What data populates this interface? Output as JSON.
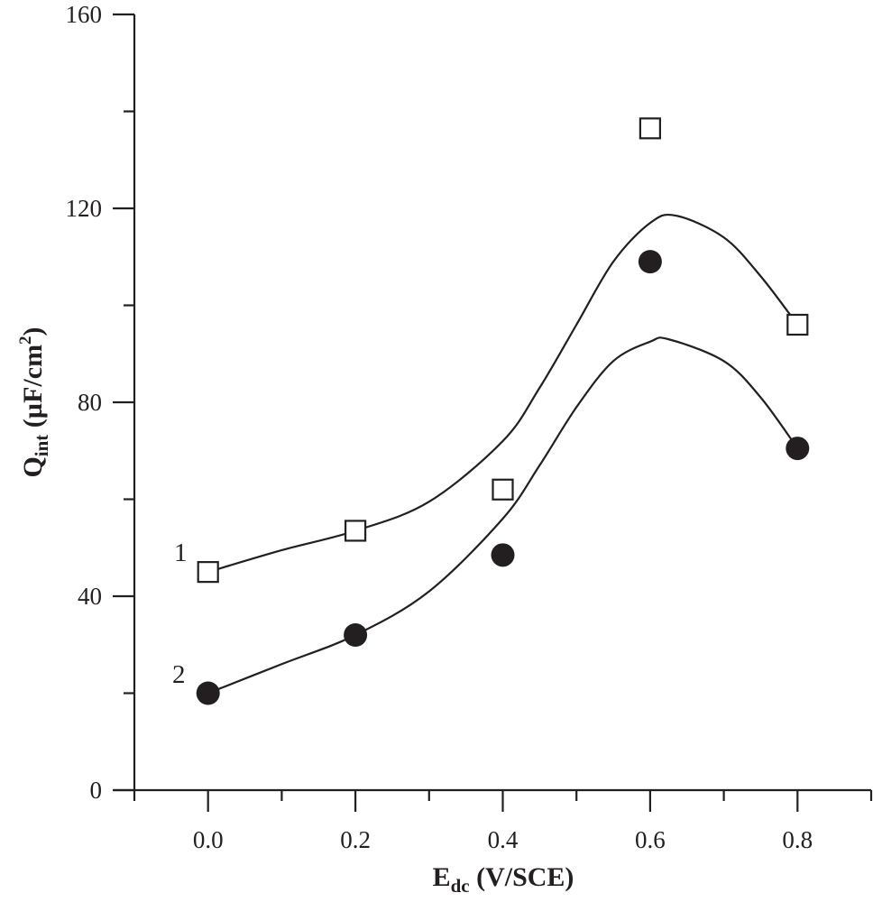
{
  "chart_data": {
    "type": "scatter",
    "title": "",
    "xlabel": {
      "main": "E",
      "sub": "dc",
      "rest": " (V/SCE)"
    },
    "ylabel": {
      "main": "Q",
      "sub": "int",
      "rest1": " (µF/cm",
      "sup": "2",
      "rest2": ")"
    },
    "xlim": [
      -0.1,
      0.9
    ],
    "ylim": [
      0,
      160
    ],
    "x_ticks": [
      {
        "value": 0.0,
        "label": "0.0"
      },
      {
        "value": 0.2,
        "label": "0.2"
      },
      {
        "value": 0.4,
        "label": "0.4"
      },
      {
        "value": 0.6,
        "label": "0.6"
      },
      {
        "value": 0.8,
        "label": "0.8"
      }
    ],
    "x_minor_ticks": [
      -0.1,
      0.1,
      0.3,
      0.5,
      0.7,
      0.9
    ],
    "y_ticks": [
      {
        "value": 0,
        "label": "0"
      },
      {
        "value": 40,
        "label": "40"
      },
      {
        "value": 80,
        "label": "80"
      },
      {
        "value": 120,
        "label": "120"
      },
      {
        "value": 160,
        "label": "160"
      }
    ],
    "y_minor_ticks": [
      20,
      60,
      100,
      140
    ],
    "grid": false,
    "legend": "none (inline curve labels)",
    "series": [
      {
        "name": "1",
        "label": "1",
        "marker": "open-square",
        "color": "#231f20",
        "x": [
          0.0,
          0.2,
          0.4,
          0.6,
          0.8
        ],
        "y": [
          45,
          53.5,
          62,
          136.5,
          96
        ],
        "fit": {
          "x": [
            0.0,
            0.1,
            0.2,
            0.3,
            0.4,
            0.45,
            0.5,
            0.55,
            0.6,
            0.635,
            0.7,
            0.75,
            0.8
          ],
          "y": [
            45,
            49.5,
            53.5,
            59.5,
            72,
            83,
            96,
            109,
            117,
            118.5,
            114,
            106,
            96
          ]
        }
      },
      {
        "name": "2",
        "label": "2",
        "marker": "filled-circle",
        "color": "#231f20",
        "x": [
          0.0,
          0.2,
          0.4,
          0.6,
          0.8
        ],
        "y": [
          20,
          32,
          48.5,
          109,
          70.5
        ],
        "fit": {
          "x": [
            0.0,
            0.1,
            0.2,
            0.3,
            0.4,
            0.45,
            0.5,
            0.55,
            0.6,
            0.625,
            0.7,
            0.75,
            0.8
          ],
          "y": [
            20,
            26,
            32,
            41,
            56,
            67,
            79,
            88.5,
            92.5,
            93,
            88.5,
            81,
            70.5
          ]
        }
      }
    ]
  }
}
